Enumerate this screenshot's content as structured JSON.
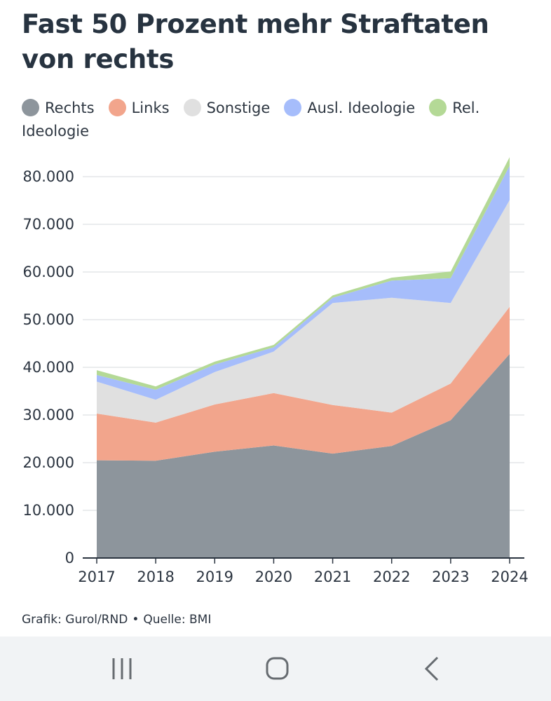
{
  "title": "Fast 50 Prozent mehr Straftaten von rechts",
  "source": {
    "grafik": "Grafik: Gurol/RND",
    "separator": "•",
    "quelle": "Quelle: BMI"
  },
  "chart_data": {
    "type": "area",
    "stacked": true,
    "title": "Fast 50 Prozent mehr Straftaten von rechts",
    "categories": [
      "2017",
      "2018",
      "2019",
      "2020",
      "2021",
      "2022",
      "2023",
      "2024"
    ],
    "series": [
      {
        "name": "Rechts",
        "color": "#8d959c",
        "values": [
          20500,
          20400,
          22300,
          23600,
          21900,
          23500,
          28900,
          42800
        ]
      },
      {
        "name": "Links",
        "color": "#f2a58c",
        "values": [
          9800,
          8000,
          9900,
          11000,
          10200,
          7000,
          7700,
          9900
        ]
      },
      {
        "name": "Sonstige",
        "color": "#e0e0e0",
        "values": [
          6700,
          4800,
          6800,
          8700,
          21400,
          24100,
          16900,
          22400
        ]
      },
      {
        "name": "Ausl. Ideologie",
        "color": "#a6bdfb",
        "values": [
          1400,
          2100,
          1600,
          900,
          1100,
          3600,
          5200,
          7200
        ]
      },
      {
        "name": "Rel. Ideologie",
        "color": "#b4d996",
        "values": [
          1000,
          700,
          600,
          500,
          500,
          600,
          1400,
          1800
        ]
      }
    ],
    "y_ticks": [
      "0",
      "10.000",
      "20.000",
      "30.000",
      "40.000",
      "50.000",
      "60.000",
      "70.000",
      "80.000"
    ],
    "ylim": [
      0,
      85000
    ],
    "xlabel": "",
    "ylabel": "",
    "grid": true,
    "legend_position": "top"
  }
}
